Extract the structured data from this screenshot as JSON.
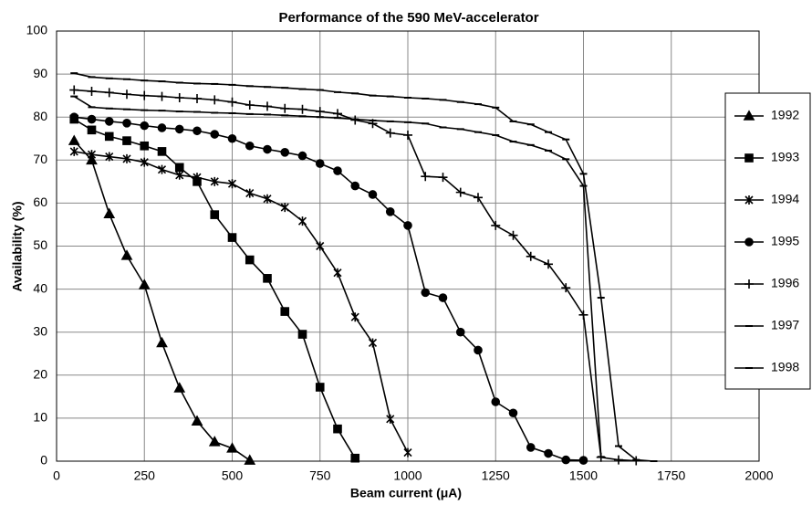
{
  "chart_data": {
    "type": "line",
    "title": "Performance of the 590 MeV-accelerator",
    "xlabel": "Beam current (μA)",
    "ylabel": "Availability (%)",
    "xlim": [
      0,
      2000
    ],
    "xticks": [
      0,
      250,
      500,
      750,
      1000,
      1250,
      1500,
      1750,
      2000
    ],
    "ylim": [
      0,
      100
    ],
    "yticks": [
      0,
      10,
      20,
      30,
      40,
      50,
      60,
      70,
      80,
      90,
      100
    ],
    "grid": true,
    "legend": "right",
    "series": [
      {
        "name": "1992",
        "color": "#000000",
        "marker": "triangle",
        "x": [
          50,
          100,
          150,
          200,
          250,
          300,
          350,
          400,
          450,
          500,
          550
        ],
        "values": [
          74.5,
          70,
          57.5,
          47.8,
          41,
          27.5,
          17,
          9.3,
          4.5,
          3,
          0.2
        ]
      },
      {
        "name": "1993",
        "color": "#000000",
        "marker": "square",
        "x": [
          50,
          100,
          150,
          200,
          250,
          300,
          350,
          400,
          450,
          500,
          550,
          600,
          650,
          700,
          750,
          800,
          850
        ],
        "values": [
          79.5,
          77,
          75.5,
          74.5,
          73.3,
          72,
          68.3,
          65,
          57.3,
          52,
          46.8,
          42.5,
          34.8,
          29.5,
          17.2,
          7.5,
          0.7
        ]
      },
      {
        "name": "1994",
        "color": "#000000",
        "marker": "star",
        "x": [
          50,
          100,
          150,
          200,
          250,
          300,
          350,
          400,
          450,
          500,
          550,
          600,
          650,
          700,
          750,
          800,
          850,
          900,
          950,
          1000
        ],
        "values": [
          72,
          71.3,
          70.8,
          70.3,
          69.5,
          67.8,
          66.5,
          66,
          65,
          64.5,
          62.3,
          61,
          59,
          55.8,
          50,
          43.8,
          33.5,
          27.5,
          9.8,
          2
        ]
      },
      {
        "name": "1995",
        "color": "#000000",
        "marker": "circle",
        "x": [
          50,
          100,
          150,
          200,
          250,
          300,
          350,
          400,
          450,
          500,
          550,
          600,
          650,
          700,
          750,
          800,
          850,
          900,
          950,
          1000,
          1050,
          1100,
          1150,
          1200,
          1250,
          1300,
          1350,
          1400,
          1450,
          1500
        ],
        "values": [
          80,
          79.5,
          79,
          78.6,
          78,
          77.5,
          77.2,
          76.8,
          76,
          75,
          73.3,
          72.5,
          71.8,
          71,
          69.2,
          67.5,
          64,
          62,
          58,
          54.8,
          39.2,
          38,
          30,
          25.8,
          13.8,
          11.2,
          3.2,
          1.8,
          0.3,
          0.2
        ]
      },
      {
        "name": "1996",
        "color": "#000000",
        "marker": "plus",
        "x": [
          50,
          100,
          150,
          200,
          250,
          300,
          350,
          400,
          450,
          500,
          550,
          600,
          650,
          700,
          750,
          800,
          850,
          900,
          950,
          1000,
          1050,
          1100,
          1150,
          1200,
          1250,
          1300,
          1350,
          1400,
          1450,
          1500,
          1550,
          1600,
          1650
        ],
        "values": [
          86.3,
          86,
          85.7,
          85.3,
          85,
          84.8,
          84.5,
          84.3,
          84,
          83.5,
          82.8,
          82.5,
          82,
          81.8,
          81.3,
          80.8,
          79.3,
          78.5,
          76.3,
          75.8,
          66.2,
          66,
          62.5,
          61.3,
          54.8,
          52.5,
          47.6,
          45.8,
          40.3,
          34,
          0.9,
          0.3,
          0.1
        ]
      },
      {
        "name": "1997",
        "color": "#000000",
        "marker": "dash",
        "x": [
          50,
          100,
          150,
          200,
          250,
          300,
          350,
          400,
          450,
          500,
          550,
          600,
          650,
          700,
          750,
          800,
          850,
          900,
          950,
          1000,
          1050,
          1100,
          1150,
          1200,
          1250,
          1300,
          1350,
          1400,
          1450,
          1500,
          1550
        ],
        "values": [
          84.8,
          82.3,
          82,
          81.8,
          81.6,
          81.5,
          81.3,
          81.2,
          81,
          80.9,
          80.7,
          80.6,
          80.4,
          80.2,
          80,
          79.8,
          79.5,
          79.2,
          79,
          78.8,
          78.5,
          77.6,
          77.2,
          76.5,
          75.8,
          74.3,
          73.5,
          72.2,
          70.2,
          64,
          1
        ]
      },
      {
        "name": "1998",
        "color": "#000000",
        "marker": "dash",
        "x": [
          50,
          100,
          150,
          200,
          250,
          300,
          350,
          400,
          450,
          500,
          550,
          600,
          650,
          700,
          750,
          800,
          850,
          900,
          950,
          1000,
          1050,
          1100,
          1150,
          1200,
          1250,
          1300,
          1350,
          1400,
          1450,
          1500,
          1550,
          1600,
          1650,
          1700
        ],
        "values": [
          90.2,
          89.3,
          89,
          88.8,
          88.5,
          88.3,
          88,
          87.8,
          87.7,
          87.5,
          87.2,
          87,
          86.8,
          86.5,
          86.3,
          85.8,
          85.5,
          85,
          84.8,
          84.5,
          84.3,
          84,
          83.5,
          83,
          82.2,
          79,
          78.3,
          76.5,
          74.8,
          66.8,
          38,
          3.5,
          0.3,
          0
        ]
      }
    ]
  }
}
